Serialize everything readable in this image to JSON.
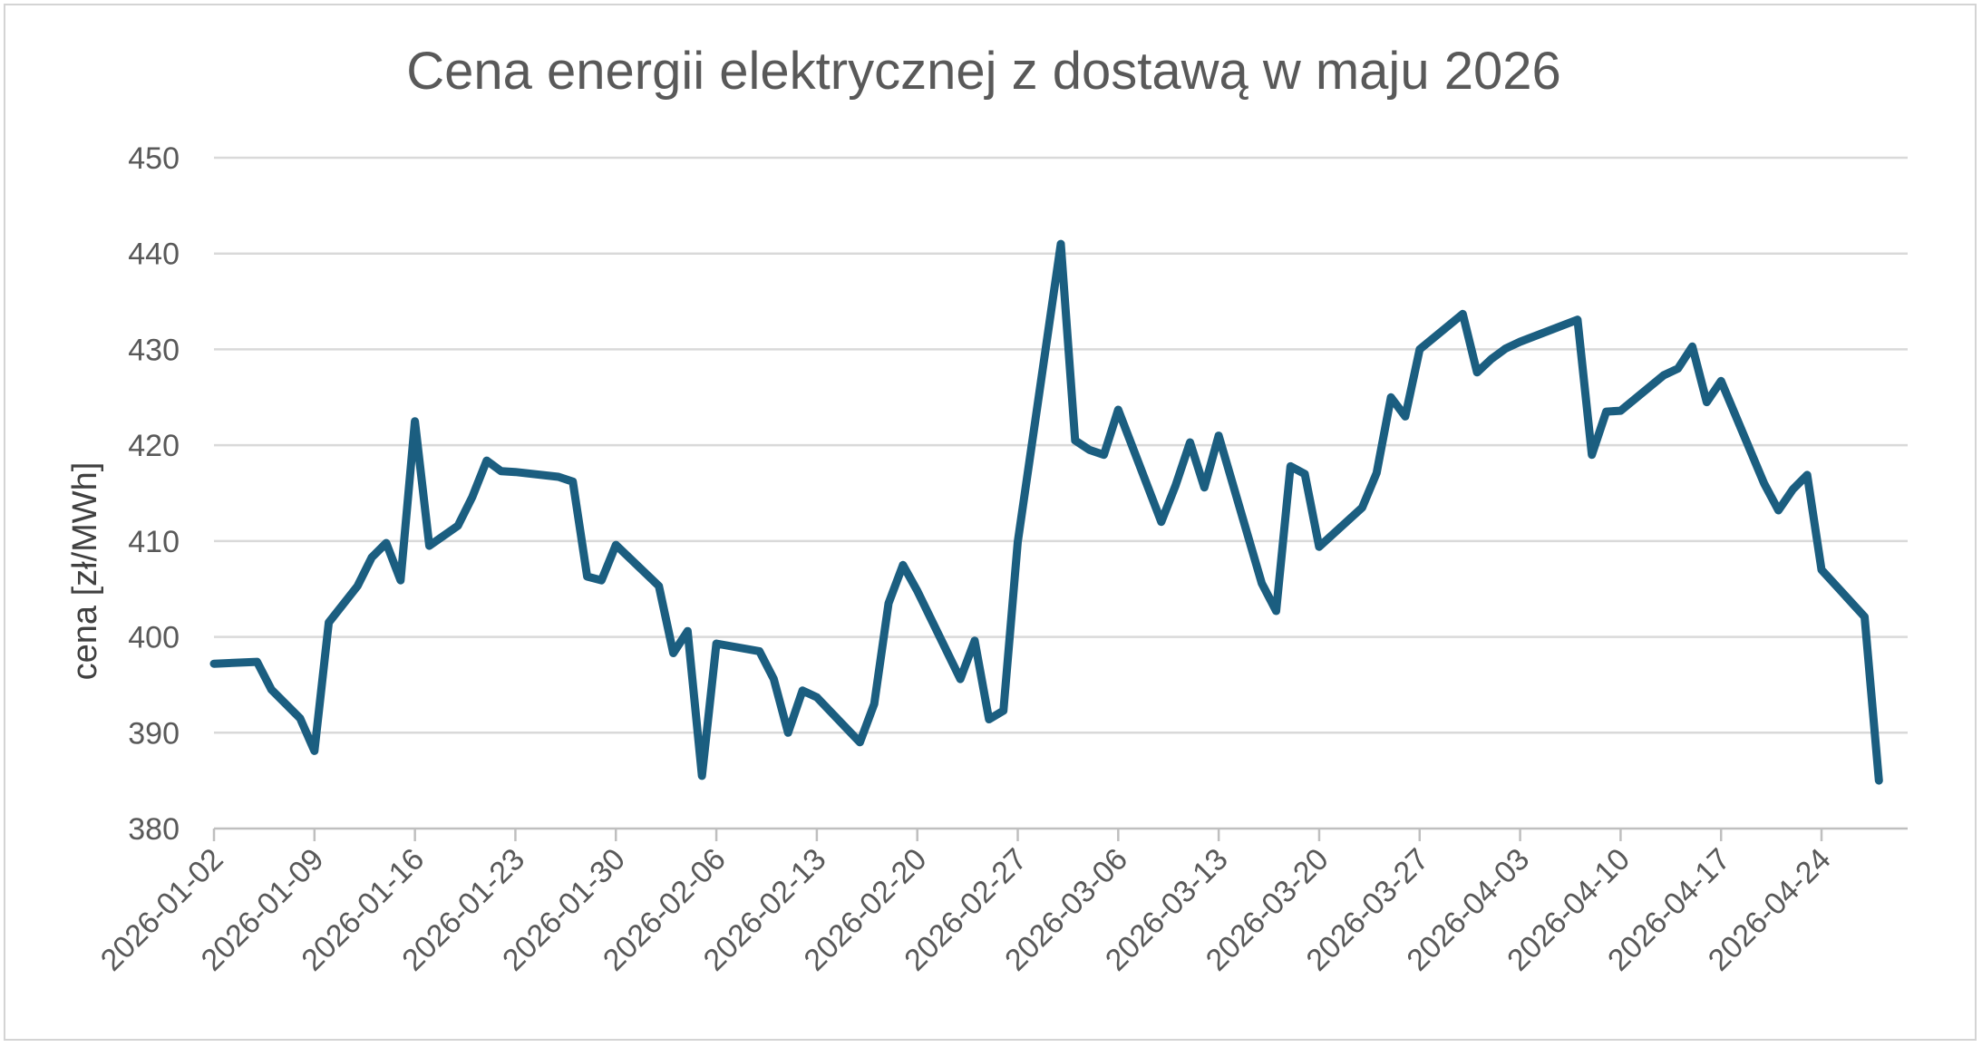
{
  "chart_data": {
    "type": "line",
    "title": "Cena energii elektrycznej z dostawą w maju 2026",
    "xlabel": "",
    "ylabel": "cena [zł/MWh]",
    "ylim": [
      380,
      450
    ],
    "yticks": [
      380,
      390,
      400,
      410,
      420,
      430,
      440,
      450
    ],
    "xlim": [
      "2026-01-02",
      "2026-04-30"
    ],
    "xticks": [
      "2026-01-02",
      "2026-01-09",
      "2026-01-16",
      "2026-01-23",
      "2026-01-30",
      "2026-02-06",
      "2026-02-13",
      "2026-02-20",
      "2026-02-27",
      "2026-03-06",
      "2026-03-13",
      "2026-03-20",
      "2026-03-27",
      "2026-04-03",
      "2026-04-10",
      "2026-04-17",
      "2026-04-24"
    ],
    "grid": true,
    "legend": "none",
    "series": [
      {
        "color": "#1b5e80",
        "x": [
          "2026-01-02",
          "2026-01-05",
          "2026-01-06",
          "2026-01-08",
          "2026-01-09",
          "2026-01-10",
          "2026-01-12",
          "2026-01-13",
          "2026-01-14",
          "2026-01-15",
          "2026-01-16",
          "2026-01-17",
          "2026-01-19",
          "2026-01-20",
          "2026-01-21",
          "2026-01-22",
          "2026-01-23",
          "2026-01-26",
          "2026-01-27",
          "2026-01-28",
          "2026-01-29",
          "2026-01-30",
          "2026-02-02",
          "2026-02-03",
          "2026-02-04",
          "2026-02-05",
          "2026-02-06",
          "2026-02-09",
          "2026-02-10",
          "2026-02-11",
          "2026-02-12",
          "2026-02-13",
          "2026-02-16",
          "2026-02-17",
          "2026-02-18",
          "2026-02-19",
          "2026-02-20",
          "2026-02-23",
          "2026-02-24",
          "2026-02-25",
          "2026-02-26",
          "2026-02-27",
          "2026-03-02",
          "2026-03-03",
          "2026-03-04",
          "2026-03-05",
          "2026-03-06",
          "2026-03-09",
          "2026-03-10",
          "2026-03-11",
          "2026-03-12",
          "2026-03-13",
          "2026-03-16",
          "2026-03-17",
          "2026-03-18",
          "2026-03-19",
          "2026-03-20",
          "2026-03-23",
          "2026-03-24",
          "2026-03-25",
          "2026-03-26",
          "2026-03-27",
          "2026-03-30",
          "2026-03-31",
          "2026-04-01",
          "2026-04-02",
          "2026-04-03",
          "2026-04-07",
          "2026-04-08",
          "2026-04-09",
          "2026-04-10",
          "2026-04-13",
          "2026-04-14",
          "2026-04-15",
          "2026-04-16",
          "2026-04-17",
          "2026-04-20",
          "2026-04-21",
          "2026-04-22",
          "2026-04-23",
          "2026-04-24",
          "2026-04-27",
          "2026-04-28"
        ],
        "y": [
          397.2,
          397.4,
          394.5,
          391.5,
          388.1,
          401.5,
          405.3,
          408.3,
          409.8,
          405.9,
          422.5,
          409.5,
          411.6,
          414.6,
          418.4,
          417.3,
          417.2,
          416.7,
          416.2,
          406.3,
          405.9,
          409.6,
          405.3,
          398.3,
          400.6,
          385.5,
          399.3,
          398.5,
          395.6,
          390.0,
          394.4,
          393.7,
          389.0,
          393.0,
          403.5,
          407.5,
          404.8,
          395.6,
          399.6,
          391.4,
          392.3,
          409.9,
          441.0,
          420.5,
          419.5,
          419.0,
          423.7,
          412.0,
          415.8,
          420.3,
          415.6,
          421.0,
          405.6,
          402.7,
          417.8,
          417.0,
          409.4,
          413.5,
          417.1,
          425.0,
          423.0,
          430.0,
          433.7,
          427.6,
          429.0,
          430.1,
          430.8,
          433.1,
          419.0,
          423.5,
          423.6,
          427.3,
          428.0,
          430.3,
          424.5,
          426.7,
          416.0,
          413.2,
          415.4,
          416.9,
          407.0,
          402.1,
          385.0
        ]
      }
    ]
  }
}
